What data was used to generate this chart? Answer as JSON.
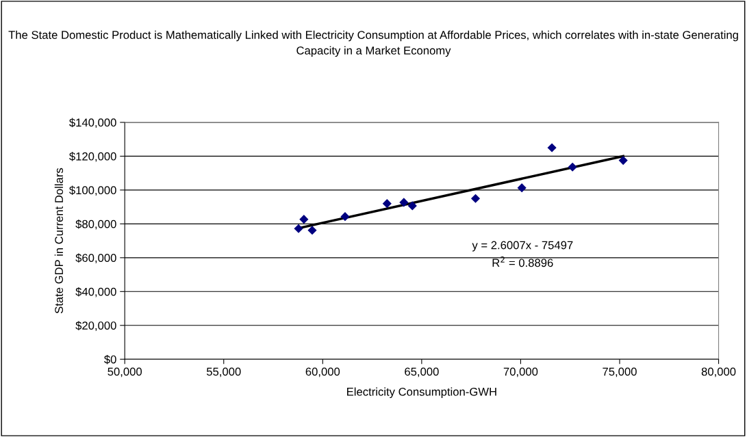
{
  "chart_data": {
    "type": "scatter",
    "title": "The State Domestic Product is Mathematically Linked with Electricity Consumption at Affordable Prices, which correlates with in-state Generating Capacity in a Market Economy",
    "xlabel": "Electricity Consumption-GWH",
    "ylabel": "State GDP in Current Dollars",
    "series": [
      {
        "color": "#000080",
        "marker": "diamond",
        "x": [
          58780,
          59050,
          59470,
          61130,
          63250,
          64100,
          64530,
          67720,
          70060,
          71580,
          72620,
          75180
        ],
        "values": [
          77200,
          82700,
          76200,
          84300,
          92000,
          92700,
          90700,
          95000,
          101300,
          125000,
          113600,
          117500
        ]
      },
      {
        "type": "line",
        "color": "#000000",
        "marker": "none",
        "line_style": "solid",
        "x": [
          58780,
          75180
        ],
        "values": [
          77400,
          120000
        ]
      }
    ],
    "annotations": [
      "y = 2.6007x - 75497",
      "R$^{2}$ = 0.8896"
    ],
    "xlim": [
      50000,
      80000
    ],
    "xticks": [
      {
        "value": 50000,
        "label": "50,000"
      },
      {
        "value": 55000,
        "label": "55,000"
      },
      {
        "value": 60000,
        "label": "60,000"
      },
      {
        "value": 65000,
        "label": "65,000"
      },
      {
        "value": 70000,
        "label": "70,000"
      },
      {
        "value": 75000,
        "label": "75,000"
      },
      {
        "value": 80000,
        "label": "80,000"
      }
    ],
    "ylim": [
      0,
      140000
    ],
    "yticks": [
      {
        "value": 0,
        "label": "$0"
      },
      {
        "value": 20000,
        "label": "$20,000"
      },
      {
        "value": 40000,
        "label": "$40,000"
      },
      {
        "value": 60000,
        "label": "$60,000"
      },
      {
        "value": 80000,
        "label": "$80,000"
      },
      {
        "value": 100000,
        "label": "$100,000"
      },
      {
        "value": 120000,
        "label": "$120,000"
      },
      {
        "value": 140000,
        "label": "$140,000"
      }
    ],
    "grid": "y"
  }
}
